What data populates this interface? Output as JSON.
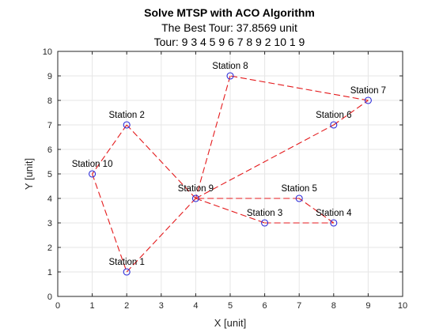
{
  "chart_data": {
    "type": "scatter",
    "title": "Solve MTSP with ACO Algorithm",
    "subtitle": "The Best Tour: 37.8569 unit",
    "tour_label": "Tour:",
    "tour": [
      9,
      3,
      4,
      5,
      9,
      6,
      7,
      8,
      9,
      2,
      10,
      1,
      9
    ],
    "xlabel": "X [unit]",
    "ylabel": "Y [unit]",
    "xlim": [
      0,
      10
    ],
    "ylim": [
      0,
      10
    ],
    "xticks": [
      0,
      1,
      2,
      3,
      4,
      5,
      6,
      7,
      8,
      9,
      10
    ],
    "yticks": [
      0,
      1,
      2,
      3,
      4,
      5,
      6,
      7,
      8,
      9,
      10
    ],
    "grid": true,
    "stations": [
      {
        "id": 1,
        "label": "Station 1",
        "x": 2,
        "y": 1
      },
      {
        "id": 2,
        "label": "Station 2",
        "x": 2,
        "y": 7
      },
      {
        "id": 3,
        "label": "Station 3",
        "x": 6,
        "y": 3
      },
      {
        "id": 4,
        "label": "Station 4",
        "x": 8,
        "y": 3
      },
      {
        "id": 5,
        "label": "Station 5",
        "x": 7,
        "y": 4
      },
      {
        "id": 6,
        "label": "Station 6",
        "x": 8,
        "y": 7
      },
      {
        "id": 7,
        "label": "Station 7",
        "x": 9,
        "y": 8
      },
      {
        "id": 8,
        "label": "Station 8",
        "x": 5,
        "y": 9
      },
      {
        "id": 9,
        "label": "Station 9",
        "x": 4,
        "y": 4
      },
      {
        "id": 10,
        "label": "Station 10",
        "x": 1,
        "y": 5
      }
    ],
    "colors": {
      "route": "#e41a1c",
      "marker": "#2b2bd9"
    }
  }
}
